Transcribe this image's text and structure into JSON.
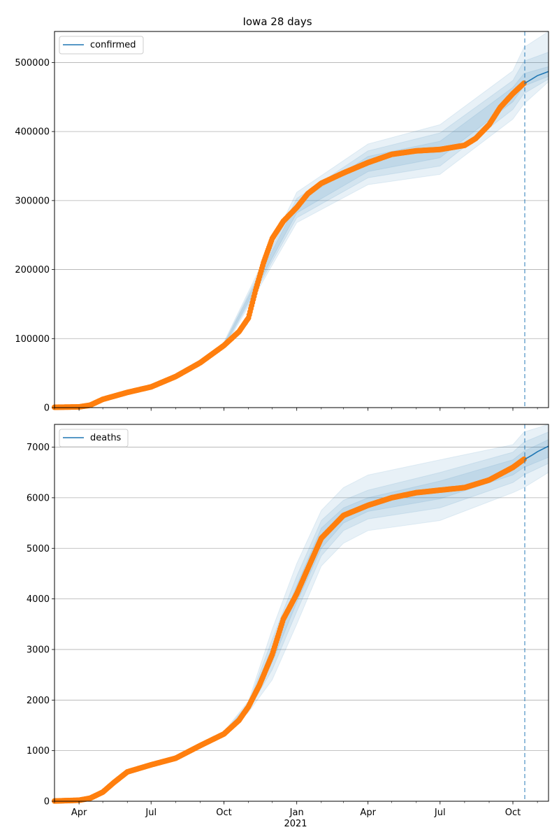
{
  "figure": {
    "title": "Iowa 28 days"
  },
  "colors": {
    "observed": "#ff7f0e",
    "forecast": "#1f77b4",
    "band": "#1f77b4",
    "grid": "#b0b0b0"
  },
  "xaxis": {
    "start": "2020-03-01",
    "end": "2021-11-15",
    "ticks": [
      {
        "date": "2020-04-01",
        "label": "Apr"
      },
      {
        "date": "2020-07-01",
        "label": "Jul"
      },
      {
        "date": "2020-10-01",
        "label": "Oct"
      },
      {
        "date": "2021-01-01",
        "label": "Jan"
      },
      {
        "date": "2021-04-01",
        "label": "Apr"
      },
      {
        "date": "2021-07-01",
        "label": "Jul"
      },
      {
        "date": "2021-10-01",
        "label": "Oct"
      }
    ],
    "year_label": "2021",
    "forecast_start": "2021-10-16"
  },
  "chart_data": [
    {
      "type": "line",
      "legend": "confirmed",
      "legend_position": "top-left",
      "grid": "horizontal",
      "ylim": [
        0,
        545000
      ],
      "yticks": [
        0,
        100000,
        200000,
        300000,
        400000,
        500000
      ],
      "ytick_labels": [
        "0",
        "100000",
        "200000",
        "300000",
        "400000",
        "500000"
      ],
      "observed": {
        "x": [
          "2020-03-01",
          "2020-04-01",
          "2020-04-15",
          "2020-05-01",
          "2020-06-01",
          "2020-07-01",
          "2020-08-01",
          "2020-09-01",
          "2020-10-01",
          "2020-10-20",
          "2020-11-01",
          "2020-11-10",
          "2020-11-20",
          "2020-12-01",
          "2020-12-15",
          "2021-01-01",
          "2021-01-15",
          "2021-02-01",
          "2021-03-01",
          "2021-04-01",
          "2021-05-01",
          "2021-06-01",
          "2021-07-01",
          "2021-08-01",
          "2021-08-15",
          "2021-09-01",
          "2021-09-15",
          "2021-10-01",
          "2021-10-15"
        ],
        "y": [
          500,
          1000,
          3500,
          12000,
          22000,
          30000,
          45000,
          65000,
          90000,
          110000,
          130000,
          170000,
          210000,
          245000,
          270000,
          290000,
          310000,
          325000,
          340000,
          355000,
          367000,
          372000,
          374000,
          380000,
          390000,
          410000,
          435000,
          455000,
          470000
        ]
      },
      "forecast": {
        "x": [
          "2021-10-16",
          "2021-10-25",
          "2021-11-01",
          "2021-11-08",
          "2021-11-15"
        ],
        "y": [
          470000,
          476000,
          481000,
          484000,
          487000
        ]
      },
      "bands": [
        {
          "level": "outer",
          "x": [
            "2020-10-01",
            "2021-01-01",
            "2021-04-01",
            "2021-07-01",
            "2021-10-01",
            "2021-10-15",
            "2021-11-15"
          ],
          "low": [
            85000,
            268000,
            323000,
            338000,
            418000,
            440000,
            472000
          ],
          "high": [
            95000,
            312000,
            382000,
            410000,
            488000,
            522000,
            545000
          ]
        },
        {
          "level": "middle",
          "x": [
            "2020-10-01",
            "2021-01-01",
            "2021-04-01",
            "2021-07-01",
            "2021-10-01",
            "2021-10-15",
            "2021-11-15"
          ],
          "low": [
            87000,
            275000,
            333000,
            350000,
            432000,
            455000,
            476000
          ],
          "high": [
            93000,
            303000,
            372000,
            398000,
            474000,
            502000,
            515000
          ]
        },
        {
          "level": "inner",
          "x": [
            "2020-10-01",
            "2021-01-01",
            "2021-04-01",
            "2021-07-01",
            "2021-10-01",
            "2021-10-15",
            "2021-11-15"
          ],
          "low": [
            88500,
            282000,
            342000,
            362000,
            443000,
            466000,
            480000
          ],
          "high": [
            91500,
            296000,
            364000,
            386000,
            464000,
            484000,
            494000
          ]
        }
      ]
    },
    {
      "type": "line",
      "legend": "deaths",
      "legend_position": "top-left",
      "grid": "horizontal",
      "ylim": [
        0,
        7450
      ],
      "yticks": [
        0,
        1000,
        2000,
        3000,
        4000,
        5000,
        6000,
        7000
      ],
      "ytick_labels": [
        "0",
        "1000",
        "2000",
        "3000",
        "4000",
        "5000",
        "6000",
        "7000"
      ],
      "observed": {
        "x": [
          "2020-03-01",
          "2020-04-01",
          "2020-04-15",
          "2020-05-01",
          "2020-05-15",
          "2020-06-01",
          "2020-07-01",
          "2020-08-01",
          "2020-09-01",
          "2020-10-01",
          "2020-10-20",
          "2020-11-01",
          "2020-11-15",
          "2020-12-01",
          "2020-12-15",
          "2021-01-01",
          "2021-01-15",
          "2021-02-01",
          "2021-03-01",
          "2021-04-01",
          "2021-05-01",
          "2021-06-01",
          "2021-07-01",
          "2021-08-01",
          "2021-09-01",
          "2021-10-01",
          "2021-10-15"
        ],
        "y": [
          5,
          20,
          60,
          180,
          370,
          580,
          720,
          850,
          1100,
          1330,
          1600,
          1870,
          2300,
          2900,
          3600,
          4100,
          4600,
          5200,
          5650,
          5850,
          6000,
          6100,
          6150,
          6200,
          6350,
          6600,
          6760
        ]
      },
      "forecast": {
        "x": [
          "2021-10-16",
          "2021-10-25",
          "2021-11-01",
          "2021-11-08",
          "2021-11-15"
        ],
        "y": [
          6760,
          6840,
          6910,
          6965,
          7020
        ]
      },
      "bands": [
        {
          "level": "outer",
          "x": [
            "2020-09-01",
            "2020-10-01",
            "2020-11-01",
            "2020-12-01",
            "2021-01-01",
            "2021-02-01",
            "2021-03-01",
            "2021-04-01",
            "2021-07-01",
            "2021-10-01",
            "2021-10-15",
            "2021-11-15"
          ],
          "low": [
            1050,
            1280,
            1760,
            2400,
            3500,
            4650,
            5100,
            5350,
            5550,
            6100,
            6200,
            6500
          ],
          "high": [
            1150,
            1380,
            1980,
            3400,
            4700,
            5750,
            6200,
            6450,
            6750,
            7050,
            7300,
            7450
          ]
        },
        {
          "level": "middle",
          "x": [
            "2020-09-01",
            "2020-10-01",
            "2020-11-01",
            "2020-12-01",
            "2021-01-01",
            "2021-02-01",
            "2021-03-01",
            "2021-04-01",
            "2021-07-01",
            "2021-10-01",
            "2021-10-15",
            "2021-11-15"
          ],
          "low": [
            1070,
            1300,
            1800,
            2600,
            3750,
            4850,
            5350,
            5580,
            5800,
            6300,
            6450,
            6680
          ],
          "high": [
            1130,
            1360,
            1940,
            3200,
            4450,
            5550,
            5950,
            6150,
            6500,
            6900,
            7100,
            7300
          ]
        },
        {
          "level": "inner",
          "x": [
            "2020-09-01",
            "2020-10-01",
            "2020-11-01",
            "2020-12-01",
            "2021-01-01",
            "2021-02-01",
            "2021-03-01",
            "2021-04-01",
            "2021-07-01",
            "2021-10-01",
            "2021-10-15",
            "2021-11-15"
          ],
          "low": [
            1085,
            1315,
            1830,
            2750,
            3930,
            5000,
            5500,
            5730,
            5980,
            6450,
            6600,
            6800
          ],
          "high": [
            1115,
            1345,
            1910,
            3050,
            4270,
            5400,
            5800,
            6000,
            6330,
            6750,
            6920,
            7150
          ]
        }
      ]
    }
  ]
}
